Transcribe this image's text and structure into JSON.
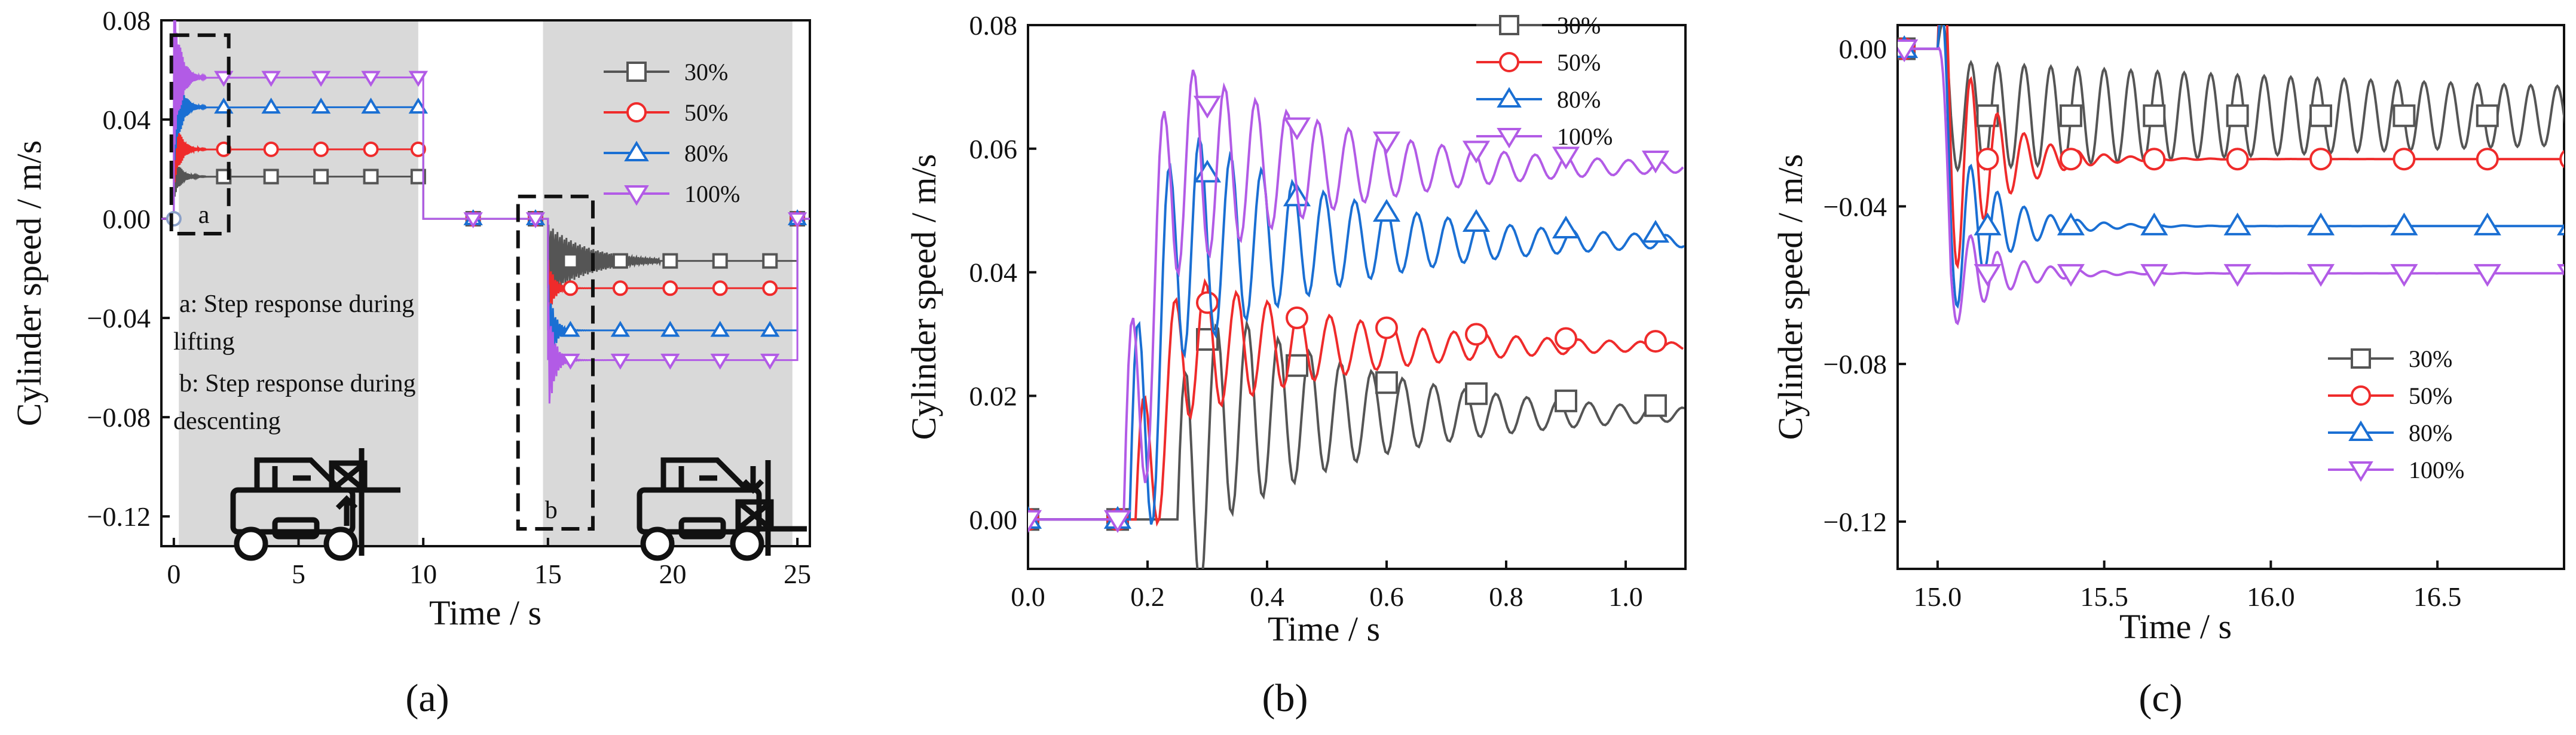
{
  "figure": {
    "panel_labels": [
      "(a)",
      "(b)",
      "(c)"
    ]
  },
  "chart_data": [
    {
      "type": "line",
      "panel": "(a)",
      "xlabel": "Time / s",
      "ylabel": "Cylinder speed  / m/s",
      "xlim": [
        -0.5,
        25.5
      ],
      "ylim": [
        -0.132,
        0.08
      ],
      "xticks": [
        0,
        5,
        10,
        15,
        20,
        25
      ],
      "xtick_labels": [
        "0",
        "5",
        "10",
        "15",
        "20",
        "25"
      ],
      "yticks": [
        -0.12,
        -0.08,
        -0.04,
        0.0,
        0.04,
        0.08
      ],
      "ytick_labels": [
        "−0.12",
        "−0.08",
        "−0.04",
        "0.00",
        "0.04",
        "0.08"
      ],
      "shaded_regions": [
        [
          0.2,
          9.8
        ],
        [
          14.8,
          24.8
        ]
      ],
      "dashed_boxes": [
        {
          "label": "a",
          "x": [
            -0.1,
            2.2
          ],
          "y": [
            -0.006,
            0.074
          ]
        },
        {
          "label": "b",
          "x": [
            13.8,
            16.8
          ],
          "y": [
            -0.125,
            0.009
          ]
        }
      ],
      "annotations": [
        "a: Step response during",
        "lifting",
        "b: Step response during",
        "descenting"
      ],
      "legend": [
        "30%",
        "50%",
        "80%",
        "100%"
      ],
      "legend_position": "top-right",
      "series": [
        {
          "name": "30%",
          "color": "#555555",
          "marker": "square",
          "lift_value": 0.017,
          "descent_value": -0.017
        },
        {
          "name": "50%",
          "color": "#ef2b2b",
          "marker": "circle",
          "lift_value": 0.028,
          "descent_value": -0.028
        },
        {
          "name": "80%",
          "color": "#1a6fd3",
          "marker": "triangle-up",
          "lift_value": 0.045,
          "descent_value": -0.045
        },
        {
          "name": "100%",
          "color": "#b25be6",
          "marker": "triangle-down",
          "lift_value": 0.057,
          "descent_value": -0.057
        }
      ],
      "phases": {
        "lift_start": 0.0,
        "lift_end": 10.0,
        "descent_start": 15.0,
        "descent_end": 25.0
      }
    },
    {
      "type": "line",
      "panel": "(b)",
      "xlabel": "Time / s",
      "ylabel": "Cylinder speed  / m/s",
      "xlim": [
        0.0,
        1.1
      ],
      "ylim": [
        -0.008,
        0.08
      ],
      "xticks": [
        0.0,
        0.2,
        0.4,
        0.6,
        0.8,
        1.0
      ],
      "xtick_labels": [
        "0.0",
        "0.2",
        "0.4",
        "0.6",
        "0.8",
        "1.0"
      ],
      "yticks": [
        0.0,
        0.02,
        0.04,
        0.06,
        0.08
      ],
      "ytick_labels": [
        "0.00",
        "0.02",
        "0.04",
        "0.06",
        "0.08"
      ],
      "legend": [
        "30%",
        "50%",
        "80%",
        "100%"
      ],
      "legend_position": "top-right",
      "series": [
        {
          "name": "30%",
          "color": "#555555",
          "marker": "square",
          "steady": 0.017,
          "onset": 0.25,
          "first_peak": 0.031,
          "marker_x": [
            0.0,
            0.15,
            0.3,
            0.45,
            0.6,
            0.75,
            0.9,
            1.05
          ]
        },
        {
          "name": "50%",
          "color": "#ef2b2b",
          "marker": "circle",
          "steady": 0.028,
          "onset": 0.18,
          "first_peak": 0.038,
          "marker_x": [
            0.0,
            0.15,
            0.3,
            0.45,
            0.6,
            0.75,
            0.9,
            1.05
          ]
        },
        {
          "name": "80%",
          "color": "#1a6fd3",
          "marker": "triangle-up",
          "steady": 0.045,
          "onset": 0.17,
          "first_peak": 0.061,
          "marker_x": [
            0.0,
            0.15,
            0.3,
            0.45,
            0.6,
            0.75,
            0.9,
            1.05
          ]
        },
        {
          "name": "100%",
          "color": "#b25be6",
          "marker": "triangle-down",
          "steady": 0.057,
          "onset": 0.16,
          "first_peak": 0.072,
          "marker_x": [
            0.0,
            0.15,
            0.3,
            0.45,
            0.6,
            0.75,
            0.9,
            1.05
          ]
        }
      ]
    },
    {
      "type": "line",
      "panel": "(c)",
      "xlabel": "Time / s",
      "ylabel": "Cylinder speed  / m/s",
      "xlim": [
        14.88,
        16.88
      ],
      "ylim": [
        -0.132,
        0.006
      ],
      "xticks": [
        15.0,
        15.5,
        16.0,
        16.5
      ],
      "xtick_labels": [
        "15.0",
        "15.5",
        "16.0",
        "16.5"
      ],
      "yticks": [
        -0.12,
        -0.08,
        -0.04,
        0.0
      ],
      "ytick_labels": [
        "−0.12",
        "−0.08",
        "−0.04",
        "0.00"
      ],
      "legend": [
        "30%",
        "50%",
        "80%",
        "100%"
      ],
      "legend_position": "lower-right",
      "series": [
        {
          "name": "30%",
          "color": "#555555",
          "marker": "square",
          "steady": -0.017,
          "onset": 15.0,
          "trough": -0.026,
          "marker_x": [
            14.9,
            15.15,
            15.4,
            15.65,
            15.9,
            16.15,
            16.4,
            16.65
          ]
        },
        {
          "name": "50%",
          "color": "#ef2b2b",
          "marker": "circle",
          "steady": -0.028,
          "onset": 15.0,
          "trough": -0.06,
          "marker_x": [
            14.9,
            15.15,
            15.4,
            15.65,
            15.9,
            16.15,
            16.4,
            16.65,
            16.9
          ]
        },
        {
          "name": "80%",
          "color": "#1a6fd3",
          "marker": "triangle-up",
          "steady": -0.045,
          "onset": 15.0,
          "trough": -0.069,
          "marker_x": [
            14.9,
            15.15,
            15.4,
            15.65,
            15.9,
            16.15,
            16.4,
            16.65,
            16.9
          ]
        },
        {
          "name": "100%",
          "color": "#b25be6",
          "marker": "triangle-down",
          "steady": -0.057,
          "onset": 15.0,
          "trough": -0.072,
          "marker_x": [
            14.9,
            15.15,
            15.4,
            15.65,
            15.9,
            16.15,
            16.4,
            16.65,
            16.9
          ]
        }
      ]
    }
  ]
}
